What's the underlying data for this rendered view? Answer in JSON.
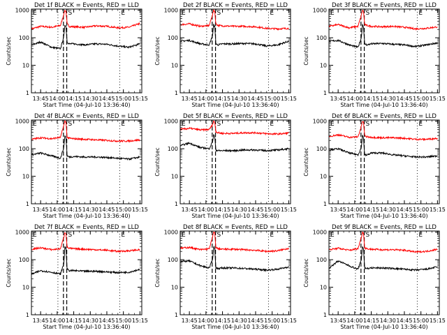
{
  "chart_data": {
    "type": "line",
    "y_scale": "log",
    "ylim": [
      1,
      1100
    ],
    "yticks": [
      1,
      10,
      100,
      1000
    ],
    "ytick_labels": [
      "1",
      "10",
      "100",
      "1000"
    ],
    "ylabel": "Counts/sec",
    "x_range": [
      "13:36:40",
      "15:16:40"
    ],
    "xticks": [
      "13:45",
      "14:00",
      "14:15",
      "14:30",
      "14:45",
      "15:00",
      "15:15"
    ],
    "xlabel": "Start Time (04-Jul-10 13:36:40)",
    "grid": false,
    "colors": {
      "events": "#000000",
      "lld": "#ff0000"
    },
    "vlines": [
      {
        "time": "13:36:40",
        "style": "dotted",
        "letter": "E"
      },
      {
        "time": "14:00:40",
        "style": "dotted"
      },
      {
        "time": "14:05:40",
        "style": "dashed"
      },
      {
        "time": "14:08:40",
        "style": "dashed",
        "letter": "S"
      },
      {
        "time": "14:56:40",
        "style": "dotted",
        "letter": "E"
      }
    ],
    "panels": [
      {
        "title": "Det 1f BLACK = Events, RED = LLD",
        "series": [
          {
            "key": "lld",
            "x": [
              "13:37",
              "13:45",
              "13:55",
              "14:03",
              "14:06",
              "14:07",
              "14:08",
              "14:09",
              "14:11",
              "14:15",
              "14:25",
              "14:35",
              "14:45",
              "14:55",
              "15:05",
              "15:15"
            ],
            "values": [
              210,
              260,
              240,
              280,
              700,
              1000,
              900,
              320,
              260,
              250,
              240,
              270,
              260,
              230,
              240,
              330
            ]
          },
          {
            "key": "events",
            "x": [
              "13:37",
              "13:45",
              "13:55",
              "14:03",
              "14:06",
              "14:07",
              "14:08",
              "14:09",
              "14:11",
              "14:15",
              "14:25",
              "14:35",
              "14:45",
              "14:55",
              "15:05",
              "15:15"
            ],
            "values": [
              55,
              70,
              45,
              40,
              110,
              300,
              250,
              70,
              60,
              60,
              55,
              60,
              58,
              50,
              45,
              60
            ]
          }
        ]
      },
      {
        "title": "Det 2f BLACK = Events, RED = LLD",
        "series": [
          {
            "key": "lld",
            "x": [
              "13:37",
              "13:45",
              "13:55",
              "14:03",
              "14:06",
              "14:07",
              "14:08",
              "14:09",
              "14:11",
              "14:15",
              "14:25",
              "14:35",
              "14:45",
              "14:55",
              "15:05",
              "15:15"
            ],
            "values": [
              300,
              320,
              260,
              280,
              700,
              1000,
              900,
              320,
              280,
              270,
              260,
              260,
              250,
              220,
              210,
              220
            ]
          },
          {
            "key": "events",
            "x": [
              "13:37",
              "13:45",
              "13:55",
              "14:03",
              "14:06",
              "14:07",
              "14:08",
              "14:09",
              "14:11",
              "14:15",
              "14:25",
              "14:35",
              "14:45",
              "14:55",
              "15:05",
              "15:15"
            ],
            "values": [
              75,
              80,
              60,
              55,
              120,
              300,
              250,
              60,
              55,
              60,
              60,
              62,
              60,
              50,
              55,
              75
            ]
          }
        ]
      },
      {
        "title": "Det 3f BLACK = Events, RED = LLD",
        "series": [
          {
            "key": "lld",
            "x": [
              "13:37",
              "13:45",
              "13:55",
              "14:03",
              "14:06",
              "14:07",
              "14:08",
              "14:09",
              "14:11",
              "14:15",
              "14:25",
              "14:35",
              "14:45",
              "14:55",
              "15:05",
              "15:15"
            ],
            "values": [
              260,
              300,
              230,
              260,
              650,
              1000,
              900,
              300,
              280,
              260,
              250,
              260,
              240,
              210,
              220,
              250
            ]
          },
          {
            "key": "events",
            "x": [
              "13:37",
              "13:45",
              "13:55",
              "14:03",
              "14:06",
              "14:07",
              "14:08",
              "14:09",
              "14:11",
              "14:15",
              "14:25",
              "14:35",
              "14:45",
              "14:55",
              "15:05",
              "15:15"
            ],
            "values": [
              75,
              80,
              55,
              45,
              100,
              300,
              250,
              60,
              55,
              60,
              62,
              58,
              55,
              48,
              55,
              65
            ]
          }
        ]
      },
      {
        "title": "Det 4f BLACK = Events, RED = LLD",
        "series": [
          {
            "key": "lld",
            "x": [
              "13:37",
              "13:45",
              "13:55",
              "14:03",
              "14:06",
              "14:07",
              "14:08",
              "14:09",
              "14:11",
              "14:15",
              "14:25",
              "14:35",
              "14:45",
              "14:55",
              "15:05",
              "15:15"
            ],
            "values": [
              220,
              250,
              230,
              260,
              700,
              1000,
              900,
              260,
              240,
              230,
              220,
              210,
              200,
              190,
              190,
              210
            ]
          },
          {
            "key": "events",
            "x": [
              "13:37",
              "13:45",
              "13:55",
              "14:03",
              "14:06",
              "14:07",
              "14:08",
              "14:09",
              "14:11",
              "14:15",
              "14:25",
              "14:35",
              "14:45",
              "14:55",
              "15:05",
              "15:15"
            ],
            "values": [
              60,
              70,
              55,
              45,
              110,
              300,
              250,
              55,
              50,
              52,
              50,
              50,
              48,
              45,
              42,
              50
            ]
          }
        ]
      },
      {
        "title": "Det 5f BLACK = Events, RED = LLD",
        "series": [
          {
            "key": "lld",
            "x": [
              "13:37",
              "13:45",
              "13:55",
              "14:03",
              "14:06",
              "14:07",
              "14:08",
              "14:09",
              "14:11",
              "14:15",
              "14:25",
              "14:35",
              "14:45",
              "14:55",
              "15:05",
              "15:15"
            ],
            "values": [
              500,
              550,
              480,
              500,
              750,
              1000,
              900,
              420,
              380,
              360,
              360,
              380,
              380,
              350,
              340,
              370
            ]
          },
          {
            "key": "events",
            "x": [
              "13:37",
              "13:45",
              "13:55",
              "14:03",
              "14:06",
              "14:07",
              "14:08",
              "14:09",
              "14:11",
              "14:15",
              "14:25",
              "14:35",
              "14:45",
              "14:55",
              "15:05",
              "15:15"
            ],
            "values": [
              130,
              160,
              110,
              100,
              180,
              320,
              260,
              90,
              85,
              85,
              85,
              90,
              90,
              85,
              90,
              100
            ]
          }
        ]
      },
      {
        "title": "Det 6f BLACK = Events, RED = LLD",
        "series": [
          {
            "key": "lld",
            "x": [
              "13:37",
              "13:45",
              "13:55",
              "14:03",
              "14:06",
              "14:07",
              "14:08",
              "14:09",
              "14:11",
              "14:15",
              "14:25",
              "14:35",
              "14:45",
              "14:55",
              "15:05",
              "15:15"
            ],
            "values": [
              280,
              320,
              260,
              270,
              650,
              1000,
              900,
              300,
              270,
              260,
              250,
              250,
              240,
              220,
              220,
              240
            ]
          },
          {
            "key": "events",
            "x": [
              "13:37",
              "13:45",
              "13:55",
              "14:03",
              "14:06",
              "14:07",
              "14:08",
              "14:09",
              "14:11",
              "14:15",
              "14:25",
              "14:35",
              "14:45",
              "14:55",
              "15:05",
              "15:15"
            ],
            "values": [
              90,
              100,
              70,
              60,
              110,
              300,
              250,
              60,
              58,
              70,
              70,
              60,
              55,
              50,
              50,
              55
            ]
          }
        ]
      },
      {
        "title": "Det 7f BLACK = Events, RED = LLD",
        "series": [
          {
            "key": "lld",
            "x": [
              "13:37",
              "13:45",
              "13:55",
              "14:03",
              "14:06",
              "14:07",
              "14:08",
              "14:09",
              "14:11",
              "14:15",
              "14:25",
              "14:35",
              "14:45",
              "14:55",
              "15:05",
              "15:15"
            ],
            "values": [
              240,
              270,
              230,
              250,
              650,
              1000,
              900,
              280,
              260,
              250,
              240,
              230,
              220,
              200,
              210,
              230
            ]
          },
          {
            "key": "events",
            "x": [
              "13:37",
              "13:45",
              "13:55",
              "14:03",
              "14:06",
              "14:07",
              "14:08",
              "14:09",
              "14:11",
              "14:15",
              "14:25",
              "14:35",
              "14:45",
              "14:55",
              "15:05",
              "15:15"
            ],
            "values": [
              30,
              40,
              35,
              30,
              70,
              300,
              250,
              45,
              40,
              40,
              38,
              38,
              36,
              34,
              35,
              45
            ]
          }
        ]
      },
      {
        "title": "Det 8f BLACK = Events, RED = LLD",
        "series": [
          {
            "key": "lld",
            "x": [
              "13:37",
              "13:45",
              "13:55",
              "14:03",
              "14:06",
              "14:07",
              "14:08",
              "14:09",
              "14:11",
              "14:15",
              "14:25",
              "14:35",
              "14:45",
              "14:55",
              "15:05",
              "15:15"
            ],
            "values": [
              260,
              280,
              230,
              250,
              650,
              1000,
              900,
              280,
              250,
              240,
              240,
              230,
              220,
              200,
              210,
              260
            ]
          },
          {
            "key": "events",
            "x": [
              "13:37",
              "13:45",
              "13:55",
              "14:03",
              "14:06",
              "14:07",
              "14:08",
              "14:09",
              "14:11",
              "14:15",
              "14:25",
              "14:35",
              "14:45",
              "14:55",
              "15:05",
              "15:15"
            ],
            "values": [
              85,
              90,
              60,
              50,
              100,
              300,
              250,
              50,
              48,
              50,
              50,
              48,
              45,
              42,
              45,
              55
            ]
          }
        ]
      },
      {
        "title": "Det 9f BLACK = Events, RED = LLD",
        "series": [
          {
            "key": "lld",
            "x": [
              "13:37",
              "13:45",
              "13:55",
              "14:03",
              "14:06",
              "14:07",
              "14:08",
              "14:09",
              "14:11",
              "14:15",
              "14:25",
              "14:35",
              "14:45",
              "14:55",
              "15:05",
              "15:15"
            ],
            "values": [
              230,
              260,
              220,
              250,
              650,
              1000,
              900,
              270,
              250,
              240,
              230,
              230,
              220,
              190,
              200,
              240
            ]
          },
          {
            "key": "events",
            "x": [
              "13:37",
              "13:45",
              "13:55",
              "14:03",
              "14:06",
              "14:07",
              "14:08",
              "14:09",
              "14:11",
              "14:15",
              "14:25",
              "14:35",
              "14:45",
              "14:55",
              "15:05",
              "15:15"
            ],
            "values": [
              50,
              90,
              60,
              45,
              100,
              300,
              250,
              50,
              48,
              50,
              50,
              48,
              45,
              42,
              45,
              55
            ]
          }
        ]
      }
    ]
  }
}
